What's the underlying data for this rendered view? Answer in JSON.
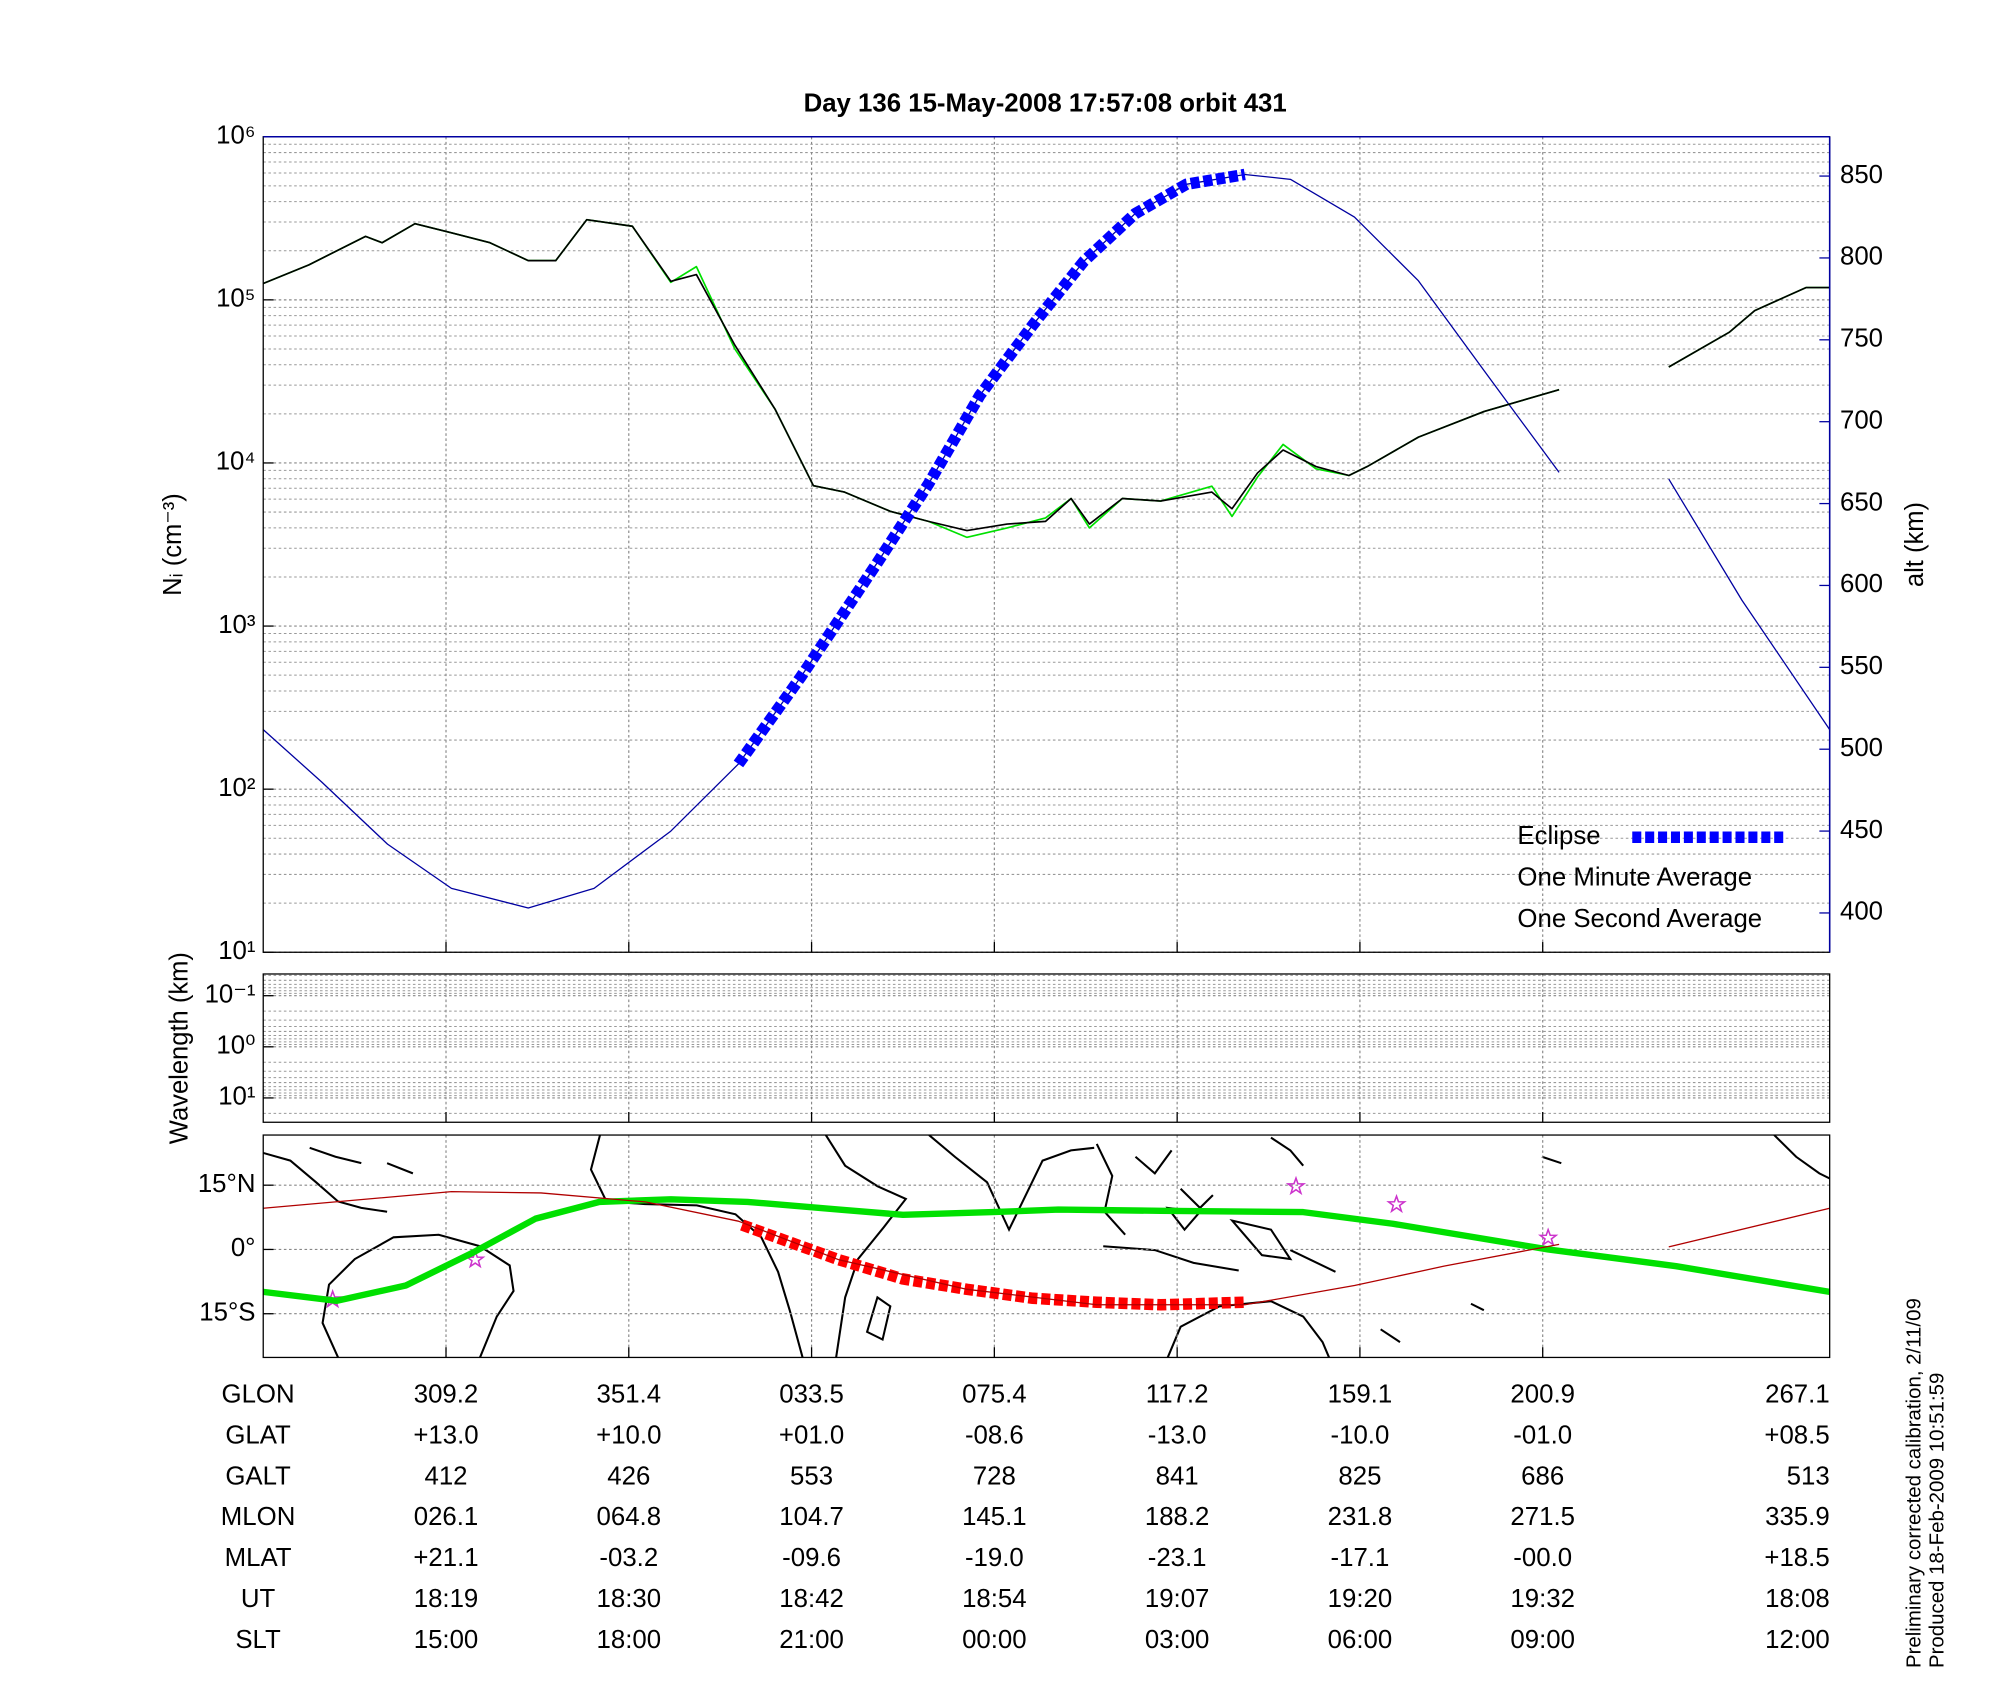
{
  "chart_data": [
    {
      "type": "line",
      "title": "Day 136  15-May-2008 17:57:08   orbit 431",
      "ylabel": "Nᵢ (cm⁻³)",
      "y2label": "alt (km)",
      "log_y": true,
      "grid": true,
      "legend": "lower right",
      "xlim": [
        0,
        8.57
      ],
      "xticks": [
        1,
        2,
        3,
        4,
        5,
        6,
        7
      ],
      "ylim": [
        10,
        1000000
      ],
      "yticks": [
        {
          "value": 10,
          "label": "10¹"
        },
        {
          "value": 100,
          "label": "10²"
        },
        {
          "value": 1000,
          "label": "10³"
        },
        {
          "value": 10000,
          "label": "10⁴"
        },
        {
          "value": 100000,
          "label": "10⁵"
        },
        {
          "value": 1000000,
          "label": "10⁶"
        }
      ],
      "y2lim": [
        376,
        874
      ],
      "y2ticks": [
        400,
        450,
        500,
        550,
        600,
        650,
        700,
        750,
        800,
        850
      ],
      "series": [
        {
          "name": "Eclipse",
          "color": "#0000ff",
          "axis": "y2",
          "style": "dashed",
          "x": [
            2.6,
            2.94,
            3.36,
            3.64,
            3.92,
            4.21,
            4.49,
            4.77,
            5.05,
            5.37
          ],
          "values": [
            491,
            544,
            614,
            662,
            716,
            759,
            798,
            827,
            845,
            851
          ]
        },
        {
          "name": "One Minute Average",
          "color": "#000000",
          "style": "normal",
          "x": [
            0,
            0.25,
            0.56,
            0.65,
            0.83,
            1.03,
            1.24,
            1.45,
            1.6,
            1.77,
            2.02,
            2.23,
            2.37,
            2.58,
            2.8,
            3.01,
            3.18,
            3.43,
            3.64,
            3.85,
            4.07,
            4.28,
            4.42,
            4.52,
            4.7,
            4.91,
            5.19,
            5.3,
            5.44,
            5.58,
            5.76,
            5.94,
            6.04,
            6.32,
            6.68,
            7.09,
            7.39,
            7.69,
            8.02,
            8.16,
            8.44,
            8.57
          ],
          "values": [
            126000,
            164000,
            245000,
            224000,
            293000,
            258000,
            224000,
            174000,
            174000,
            310000,
            283000,
            130000,
            143000,
            52800,
            21400,
            7250,
            6630,
            5060,
            4380,
            3850,
            4220,
            4380,
            6060,
            4220,
            6060,
            5840,
            6630,
            5240,
            8680,
            12000,
            9510,
            8380,
            9510,
            14400,
            20700,
            28100,
            null,
            38800,
            63200,
            85900,
            119000,
            119000
          ]
        },
        {
          "name": "One Second Average",
          "color": "#00e000",
          "style": "normal",
          "x": [
            0,
            0.25,
            0.56,
            0.65,
            0.83,
            1.03,
            1.24,
            1.45,
            1.6,
            1.77,
            2.02,
            2.23,
            2.37,
            2.58,
            2.8,
            3.01,
            3.18,
            3.43,
            3.64,
            3.85,
            4.07,
            4.28,
            4.42,
            4.52,
            4.7,
            4.91,
            5.19,
            5.3,
            5.44,
            5.58,
            5.76,
            5.94,
            6.04,
            6.32,
            6.68,
            7.09,
            7.39,
            7.69,
            8.02,
            8.16,
            8.44,
            8.57
          ],
          "values": [
            126000,
            164000,
            245000,
            224000,
            293000,
            258000,
            224000,
            174000,
            174000,
            310000,
            283000,
            128000,
            160000,
            50000,
            21400,
            7250,
            6630,
            5060,
            4380,
            3500,
            4000,
            4600,
            6060,
            4000,
            6060,
            5840,
            7200,
            4700,
            8200,
            13000,
            9200,
            8380,
            9510,
            14400,
            20700,
            28100,
            null,
            38800,
            63200,
            85900,
            119000,
            119000
          ]
        },
        {
          "color": "#0000a0",
          "axis": "y2",
          "style": "thin",
          "x": [
            0,
            0.32,
            0.68,
            1.03,
            1.45,
            1.81,
            2.23,
            2.6,
            2.94,
            3.36,
            3.64,
            3.92,
            4.21,
            4.49,
            4.77,
            5.05,
            5.37,
            5.62,
            5.97,
            6.32,
            6.68,
            7.09,
            7.39,
            7.69,
            8.09,
            8.57
          ],
          "values": [
            512,
            480,
            442,
            415,
            403,
            415,
            450,
            491,
            544,
            614,
            662,
            716,
            759,
            798,
            827,
            845,
            851,
            848,
            825,
            786,
            731,
            669,
            null,
            665,
            591,
            512
          ]
        }
      ]
    },
    {
      "type": "line",
      "ylabel": "Wavelength (km)",
      "log_y": true,
      "grid": true,
      "xlim": [
        0,
        8.57
      ],
      "xticks": [
        1,
        2,
        3,
        4,
        5,
        6,
        7
      ],
      "ylim": [
        29.9,
        0.0376
      ],
      "yticks": [
        {
          "value": 0.1,
          "label": "10⁻¹"
        },
        {
          "value": 1,
          "label": "10⁰"
        },
        {
          "value": 10,
          "label": "10¹"
        }
      ],
      "series": []
    },
    {
      "type": "line",
      "grid": true,
      "xlim": [
        0,
        8.57
      ],
      "xticks": [
        1,
        2,
        3,
        4,
        5,
        6,
        7
      ],
      "ylim": [
        -25.2,
        26.7
      ],
      "yticks": [
        {
          "value": 15,
          "label": "15°N"
        },
        {
          "value": 0,
          "label": "0°"
        },
        {
          "value": -15,
          "label": "15°S"
        }
      ],
      "series": [
        {
          "color": "#b00000",
          "style": "thin",
          "x": [
            0,
            1.03,
            1.52,
            2.09,
            2.6,
            3.15,
            3.85,
            4.56,
            5.37,
            5.97,
            6.46,
            7.09,
            7.39,
            7.69,
            8.57
          ],
          "values": [
            9.6,
            13.5,
            13.2,
            11.1,
            6.6,
            -2.4,
            -9.3,
            -12.9,
            -12.9,
            -8.4,
            -3.9,
            1.2,
            null,
            0.6,
            9.6
          ]
        },
        {
          "color": "#00e000",
          "style": "thick",
          "x": [
            0,
            0.4,
            0.78,
            1.14,
            1.49,
            1.84,
            2.23,
            2.65,
            3.15,
            3.5,
            3.99,
            4.35,
            4.91,
            5.69,
            6.18,
            7.03,
            7.73,
            8.57
          ],
          "values": [
            -9.9,
            -12,
            -8.4,
            -0.9,
            7.2,
            11.1,
            11.7,
            11.1,
            9.3,
            8.1,
            8.7,
            9.3,
            9.0,
            8.7,
            6,
            0,
            -3.9,
            -9.9
          ]
        },
        {
          "color": "#ff0000",
          "style": "dashed",
          "x": [
            2.62,
            3.15,
            3.5,
            3.85,
            4.21,
            4.56,
            4.91,
            5.37
          ],
          "values": [
            5.7,
            -2.4,
            -6.9,
            -9.3,
            -11.4,
            -12.3,
            -12.9,
            -12.3
          ]
        },
        {
          "color": "#cc33cc",
          "style": "stars",
          "x": [
            0.38,
            1.16,
            5.65,
            6.2,
            7.03
          ],
          "values": [
            -11.7,
            -2.4,
            14.7,
            10.5,
            2.7
          ]
        }
      ]
    }
  ],
  "ephemeris": {
    "rows": [
      {
        "label": "GLON",
        "values": [
          "309.2",
          "351.4",
          "033.5",
          "075.4",
          "117.2",
          "159.1",
          "200.9",
          "267.1"
        ]
      },
      {
        "label": "GLAT",
        "values": [
          "+13.0",
          "+10.0",
          "+01.0",
          "-08.6",
          "-13.0",
          "-10.0",
          "-01.0",
          "+08.5"
        ]
      },
      {
        "label": "GALT",
        "values": [
          "412",
          "426",
          "553",
          "728",
          "841",
          "825",
          "686",
          "513"
        ]
      },
      {
        "label": "MLON",
        "values": [
          "026.1",
          "064.8",
          "104.7",
          "145.1",
          "188.2",
          "231.8",
          "271.5",
          "335.9"
        ]
      },
      {
        "label": "MLAT",
        "values": [
          "+21.1",
          "-03.2",
          "-09.6",
          "-19.0",
          "-23.1",
          "-17.1",
          "-00.0",
          "+18.5"
        ]
      },
      {
        "label": "UT",
        "values": [
          "18:19",
          "18:30",
          "18:42",
          "18:54",
          "19:07",
          "19:20",
          "19:32",
          "18:08"
        ]
      },
      {
        "label": "SLT",
        "values": [
          "15:00",
          "18:00",
          "21:00",
          "00:00",
          "03:00",
          "06:00",
          "09:00",
          "12:00"
        ]
      }
    ]
  },
  "notes": [
    "Preliminary corrected calibration, 2/11/09",
    "Produced 18-Feb-2009 10:51:59"
  ]
}
